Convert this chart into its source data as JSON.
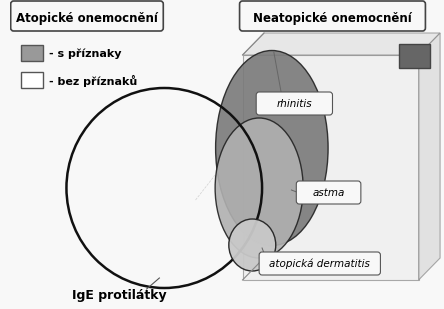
{
  "title_left": "Atopické onemocnění",
  "title_right": "Neatopické onemocnění",
  "legend_s_priznaky": "- s příznaky",
  "legend_bez_priznaku": "- bez příznaků",
  "label_ige": "IgE protilátky",
  "label_rhinitis": "rhinitis",
  "label_astma": "astma",
  "label_atopicka": "atopická dermatitis",
  "bg_color": "#f8f8f8",
  "circle_large_edge": "#111111",
  "ellipse_dark_color": "#7a7a7a",
  "ellipse_mid_color": "#b0b0b0",
  "ellipse_small_color": "#c8c8c8",
  "legend_box_gray": "#999999",
  "legend_box_white": "#ffffff",
  "legend_box_dark": "#666666",
  "box_edge": "#888888",
  "box_face": "#f0f0f0"
}
